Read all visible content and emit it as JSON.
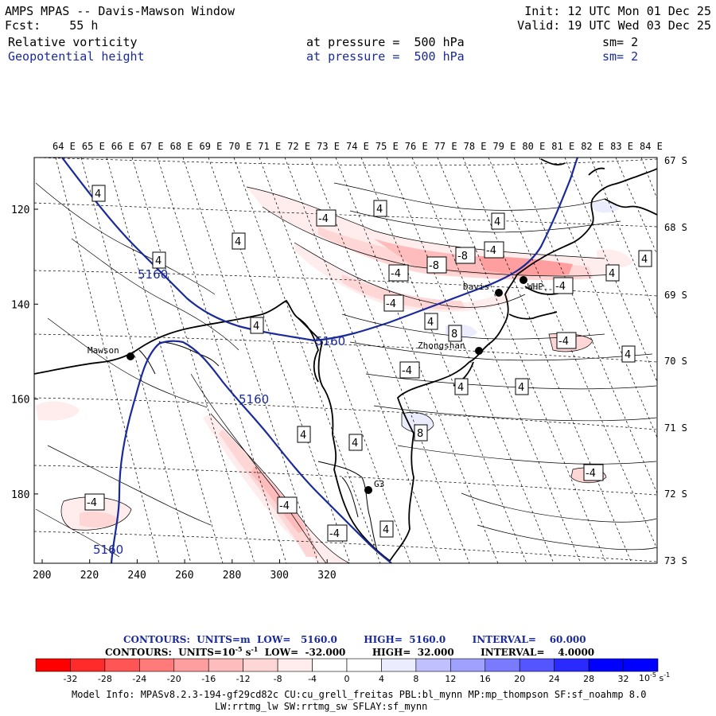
{
  "header": {
    "title": "AMPS MPAS -- Davis-Mawson Window",
    "forecast": "Fcst:    55 h",
    "init": "Init: 12 UTC Mon 01 Dec 25",
    "valid": "Valid: 19 UTC Wed 03 Dec 25",
    "fields": [
      {
        "name": "Relative vorticity",
        "level": "at pressure =  500 hPa",
        "sm": "sm= 2",
        "color": "#000000"
      },
      {
        "name": "Geopotential height",
        "level": "at pressure =  500 hPa",
        "sm": "sm= 2",
        "color": "#1a2a9a"
      }
    ]
  },
  "map": {
    "top_lon_labels": [
      "64 E",
      "65 E",
      "66 E",
      "67 E",
      "68 E",
      "69 E",
      "70 E",
      "71 E",
      "72 E",
      "73 E",
      "74 E",
      "75 E",
      "76 E",
      "77 E",
      "78 E",
      "79 E",
      "80 E",
      "81 E",
      "82 E",
      "83 E",
      "84 E"
    ],
    "right_lat_labels": [
      "67 S",
      "68 S",
      "69 S",
      "70 S",
      "71 S",
      "72 S",
      "73 S"
    ],
    "x_ticks": [
      "200",
      "220",
      "240",
      "260",
      "280",
      "300",
      "320"
    ],
    "y_ticks": [
      "120",
      "140",
      "160",
      "180"
    ],
    "stations": [
      {
        "name": "Mawson"
      },
      {
        "name": "Davis"
      },
      {
        "name": "Zhongshan"
      },
      {
        "name": "WHP"
      },
      {
        "name": "G3"
      }
    ],
    "height_contour_label": "5160",
    "vort_labels": [
      "4",
      "-4",
      "8",
      "-8"
    ]
  },
  "legend": {
    "contours_height": "CONTOURS:  UNITS=m  LOW=   5160.0        HIGH=  5160.0        INTERVAL=    60.000",
    "contours_vort_prefix": "CONTOURS:  UNITS=10",
    "contours_vort_exp": "-5",
    "contours_vort_unit": " s",
    "contours_vort_unit_exp": "-1",
    "contours_vort_rest": "  LOW=  -32.000        HIGH=  32.000        INTERVAL=    4.0000",
    "colorbar_labels": [
      "-32",
      "-28",
      "-24",
      "-20",
      "-16",
      "-12",
      "-8",
      "-4",
      "0",
      "4",
      "8",
      "12",
      "16",
      "20",
      "24",
      "28",
      "32"
    ],
    "colorbar_unit": "10",
    "colorbar_unit_exp": "-5",
    "colorbar_unit_s": "s",
    "colorbar_unit_s_exp": "-1",
    "colors": [
      "#ff0000",
      "#ff2a2a",
      "#ff5555",
      "#ff7a7a",
      "#ff9e9e",
      "#ffbcbc",
      "#ffd6d6",
      "#ffecec",
      "#ffffff",
      "#ffffff",
      "#ececff",
      "#c0c0ff",
      "#a0a0ff",
      "#7a7aff",
      "#5555ff",
      "#2a2aff",
      "#0000ff",
      "#0000ff"
    ]
  },
  "model_info": {
    "line1": "Model Info: MPASv8.2.3-194-gf29cd82c CU:cu_grell_freitas PBL:bl_mynn MP:mp_thompson SF:sf_noahmp 8.0",
    "line2": "LW:rrtmg_lw SW:rrtmg_sw SFLAY:sf_mynn"
  }
}
